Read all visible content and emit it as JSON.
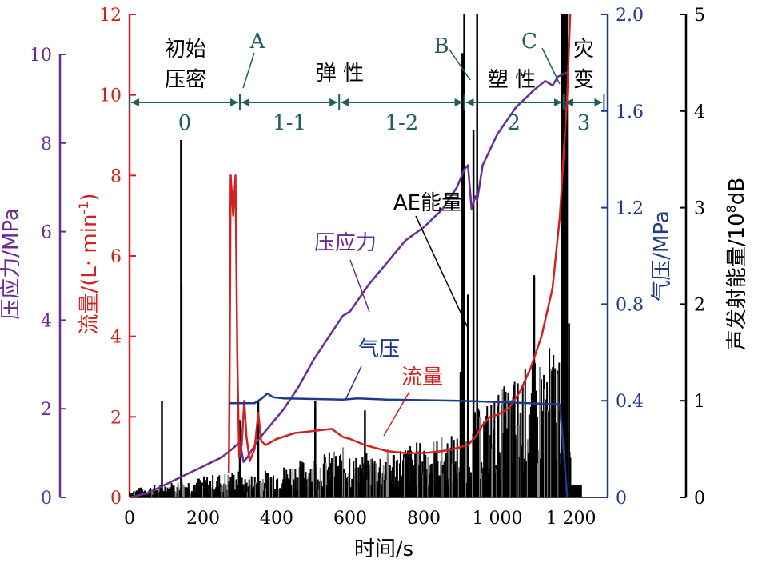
{
  "chart_data": {
    "type": "line",
    "xlabel": "时间/s",
    "x_ticks": [
      "0",
      "200",
      "400",
      "600",
      "800",
      "1 000",
      "1 200"
    ],
    "xlim": [
      0,
      1300
    ],
    "axes": {
      "stress": {
        "label": "压应力/MPa",
        "ticks": [
          "0",
          "2",
          "4",
          "6",
          "8",
          "10"
        ],
        "range": [
          0,
          10.5
        ],
        "color": "#6a2c91"
      },
      "flow": {
        "label": "流量/(L· min",
        "label_sup": "-1",
        "label_end": ")",
        "ticks": [
          "0",
          "2",
          "4",
          "6",
          "8",
          "10",
          "12"
        ],
        "range": [
          0,
          12
        ],
        "color": "#d42020"
      },
      "gas": {
        "label": "气压/MPa",
        "ticks": [
          "0",
          "0.4",
          "0.8",
          "1.2",
          "1.6",
          "2.0"
        ],
        "range": [
          0,
          2.0
        ],
        "color": "#1f3a8a"
      },
      "ae": {
        "label": "声发射能量/10",
        "label_sup": "8",
        "label_end": "dB",
        "ticks": [
          "0",
          "1",
          "2",
          "3",
          "4",
          "5"
        ],
        "range": [
          0,
          5
        ],
        "color": "#000000"
      }
    },
    "series": [
      {
        "name": "压应力",
        "axis": "stress",
        "color": "#6a2c91",
        "points": [
          [
            0,
            0
          ],
          [
            50,
            0.1
          ],
          [
            100,
            0.3
          ],
          [
            150,
            0.5
          ],
          [
            200,
            0.7
          ],
          [
            250,
            0.9
          ],
          [
            280,
            1.1
          ],
          [
            300,
            1.25
          ],
          [
            310,
            0.8
          ],
          [
            320,
            0.9
          ],
          [
            350,
            1.3
          ],
          [
            380,
            1.6
          ],
          [
            420,
            2.0
          ],
          [
            460,
            2.5
          ],
          [
            500,
            3.1
          ],
          [
            540,
            3.6
          ],
          [
            580,
            4.1
          ],
          [
            600,
            4.2
          ],
          [
            650,
            4.8
          ],
          [
            700,
            5.3
          ],
          [
            750,
            5.8
          ],
          [
            800,
            6.1
          ],
          [
            850,
            6.5
          ],
          [
            890,
            7.0
          ],
          [
            910,
            7.4
          ],
          [
            920,
            7.5
          ],
          [
            930,
            6.5
          ],
          [
            940,
            6.8
          ],
          [
            945,
            6.7
          ],
          [
            960,
            7.5
          ],
          [
            1000,
            8.2
          ],
          [
            1050,
            8.8
          ],
          [
            1100,
            9.2
          ],
          [
            1130,
            9.4
          ],
          [
            1150,
            9.3
          ],
          [
            1165,
            9.5
          ],
          [
            1190,
            9.6
          ]
        ]
      },
      {
        "name": "流量",
        "axis": "flow",
        "color": "#d42020",
        "points": [
          [
            270,
            0.6
          ],
          [
            272,
            3.0
          ],
          [
            275,
            8.0
          ],
          [
            282,
            7.0
          ],
          [
            288,
            8.0
          ],
          [
            293,
            3.5
          ],
          [
            298,
            1.0
          ],
          [
            305,
            1.3
          ],
          [
            312,
            2.4
          ],
          [
            318,
            1.5
          ],
          [
            327,
            0.9
          ],
          [
            340,
            1.2
          ],
          [
            350,
            2.1
          ],
          [
            358,
            1.4
          ],
          [
            370,
            1.3
          ],
          [
            400,
            1.45
          ],
          [
            450,
            1.6
          ],
          [
            500,
            1.65
          ],
          [
            550,
            1.7
          ],
          [
            580,
            1.5
          ],
          [
            600,
            1.45
          ],
          [
            640,
            1.3
          ],
          [
            700,
            1.15
          ],
          [
            750,
            1.1
          ],
          [
            800,
            1.1
          ],
          [
            850,
            1.15
          ],
          [
            880,
            1.2
          ],
          [
            920,
            1.3
          ],
          [
            940,
            1.5
          ],
          [
            960,
            1.8
          ],
          [
            980,
            2.0
          ],
          [
            1000,
            2.05
          ],
          [
            1030,
            2.2
          ],
          [
            1060,
            2.6
          ],
          [
            1090,
            3.2
          ],
          [
            1120,
            4.0
          ],
          [
            1150,
            5.2
          ],
          [
            1170,
            7.0
          ],
          [
            1180,
            8.5
          ],
          [
            1190,
            10.0
          ],
          [
            1198,
            12.0
          ]
        ]
      },
      {
        "name": "气压",
        "axis": "gas",
        "color": "#1f3a8a",
        "points": [
          [
            270,
            0.39
          ],
          [
            340,
            0.39
          ],
          [
            360,
            0.41
          ],
          [
            375,
            0.43
          ],
          [
            390,
            0.415
          ],
          [
            420,
            0.41
          ],
          [
            580,
            0.405
          ],
          [
            620,
            0.41
          ],
          [
            700,
            0.405
          ],
          [
            900,
            0.4
          ],
          [
            1000,
            0.395
          ],
          [
            1170,
            0.385
          ],
          [
            1180,
            0.2
          ],
          [
            1190,
            0.0
          ]
        ]
      }
    ],
    "ae_spikes": [
      [
        140,
        3.7
      ],
      [
        141,
        2.2
      ],
      [
        88,
        1.0
      ],
      [
        300,
        0.8
      ],
      [
        350,
        1.0
      ],
      [
        505,
        1.0
      ],
      [
        640,
        0.9
      ],
      [
        900,
        1.3
      ],
      [
        905,
        4.6
      ],
      [
        910,
        5.0
      ],
      [
        920,
        2.1
      ],
      [
        935,
        3.8
      ],
      [
        945,
        5.0
      ],
      [
        1100,
        2.3
      ],
      [
        1175,
        5.0
      ],
      [
        1185,
        5.0
      ],
      [
        1195,
        1.8
      ]
    ],
    "ae_tail": [
      1210,
      0.05
    ],
    "phases": [
      {
        "label": "0",
        "from": 0,
        "to": 300
      },
      {
        "label": "1-1",
        "from": 300,
        "to": 570
      },
      {
        "label": "1-2",
        "from": 570,
        "to": 910
      },
      {
        "label": "2",
        "from": 910,
        "to": 1180
      },
      {
        "label": "3",
        "from": 1180,
        "to": 1290
      }
    ],
    "phase_names": {
      "initial_1": "初始",
      "initial_2": "压密",
      "elastic": "弹 性",
      "plastic": "塑 性",
      "disaster_1": "灾",
      "disaster_2": "变"
    },
    "points_labels": {
      "A": "A",
      "B": "B",
      "C": "C"
    },
    "annotations": {
      "ae": "AE能量",
      "stress": "压应力",
      "gas": "气压",
      "flow": "流量"
    }
  }
}
